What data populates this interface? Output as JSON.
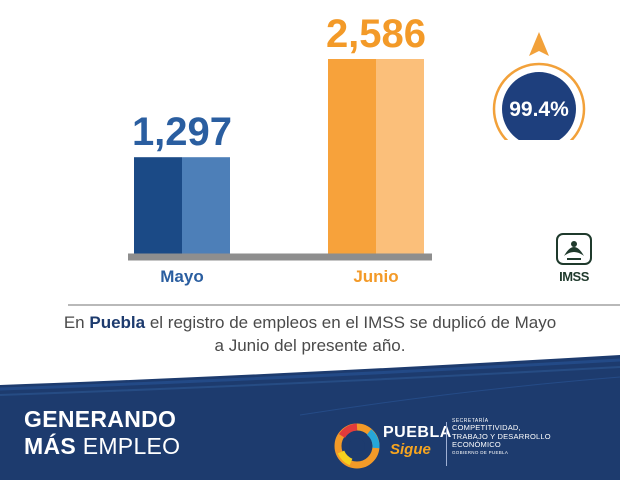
{
  "chart_data": {
    "type": "bar",
    "categories": [
      "Mayo",
      "Junio"
    ],
    "values": [
      1297,
      2586
    ],
    "value_labels": [
      "1,297",
      "2,586"
    ],
    "colors": {
      "Mayo": {
        "dark": "#1b4a86",
        "light": "#4d7fb8",
        "label": "#2a5ea0"
      },
      "Junio": {
        "dark": "#f7a23b",
        "light": "#fbbf7a",
        "label": "#f39a28"
      }
    },
    "baseline_color": "#8e8e8e",
    "grid": false,
    "legend": "none"
  },
  "growth": {
    "value": "99.4%",
    "direction": "up",
    "circle_color": "#1e3f7d",
    "ring_color": "#f2a13a"
  },
  "imss_logo": {
    "text": "IMSS",
    "color": "#1f3a2c"
  },
  "caption": {
    "before": "En ",
    "bold": "Puebla",
    "after": " el registro de empleos en el IMSS se duplicó de Mayo a Junio del presente año."
  },
  "footer": {
    "slogan_line1": "GENERANDO",
    "slogan_line2_bold": "MÁS",
    "slogan_line2_light": " EMPLEO",
    "brand_name": "PUEBLA",
    "brand_sub": "Sigue",
    "secretaria_label": "SECRETARÍA",
    "secretaria_name": [
      "COMPETITIVIDAD,",
      "TRABAJO Y DESARROLLO",
      "ECONÓMICO"
    ],
    "gobierno_label": "GOBIERNO DE PUEBLA",
    "bg_color": "#1d3b6e"
  }
}
